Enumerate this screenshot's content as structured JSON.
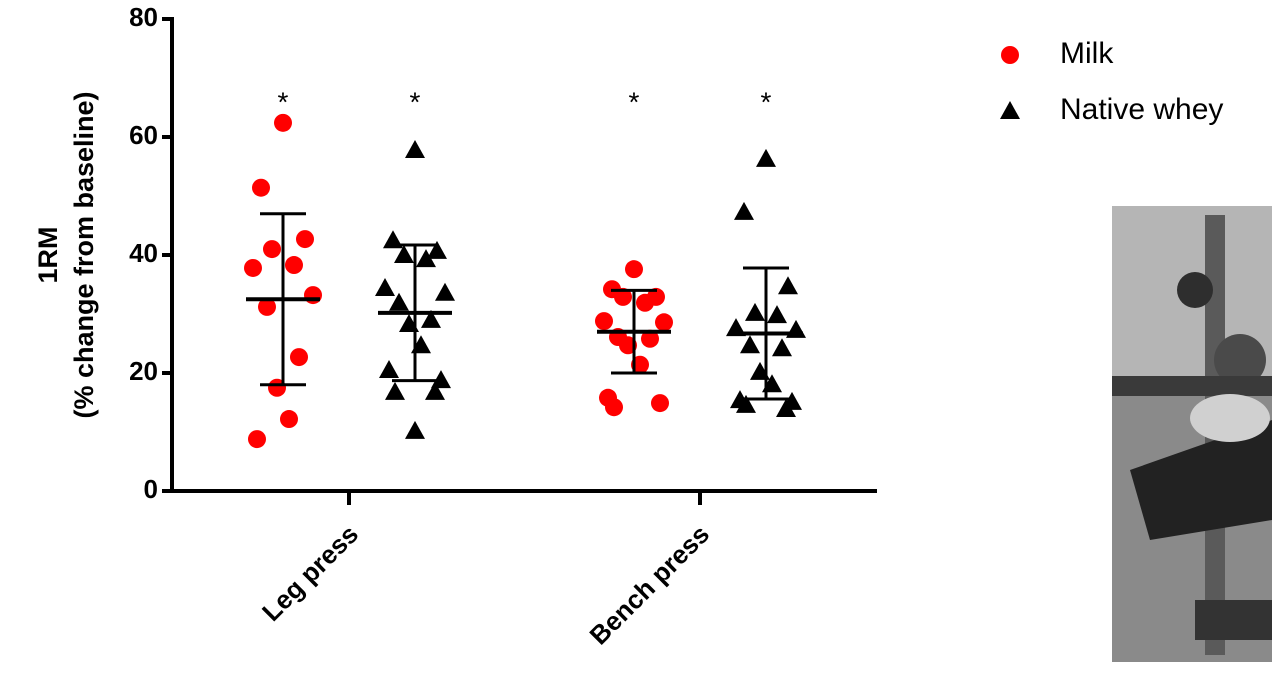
{
  "chart_data": {
    "type": "dotplot",
    "ylabel": [
      "1RM",
      "(% change from baseline)"
    ],
    "categories": [
      "Leg press",
      "Bench press"
    ],
    "ylim": [
      0,
      80
    ],
    "yticks": [
      0,
      20,
      40,
      60,
      80
    ],
    "annotations": [
      "*",
      "*",
      "*",
      "*"
    ],
    "series": [
      {
        "name": "Milk",
        "color": "#ff0000",
        "marker": "circle",
        "values": [
          [
            62.4,
            51.4,
            42.7,
            41.0,
            38.3,
            37.8,
            33.2,
            31.2,
            22.7,
            17.5,
            12.2,
            8.8
          ],
          [
            37.6,
            34.2,
            32.9,
            32.9,
            31.9,
            28.8,
            28.6,
            26.1,
            25.8,
            24.7,
            21.4,
            15.8,
            14.9,
            14.2
          ]
        ],
        "mean": [
          32.5,
          27.0
        ],
        "sd": [
          14.5,
          7.0
        ]
      },
      {
        "name": "Native whey",
        "color": "#000000",
        "marker": "triangle",
        "values": [
          [
            57.8,
            42.5,
            40.7,
            40.0,
            39.3,
            34.4,
            33.6,
            31.9,
            29.0,
            28.3,
            24.7,
            20.5,
            18.8,
            16.8,
            16.8,
            10.2
          ],
          [
            56.3,
            47.3,
            34.7,
            30.2,
            29.8,
            27.6,
            27.3,
            24.7,
            24.2,
            20.2,
            18.1,
            15.4,
            15.1,
            14.6,
            13.9
          ]
        ],
        "mean": [
          30.2,
          26.7
        ],
        "sd": [
          11.5,
          11.1
        ]
      }
    ]
  }
}
